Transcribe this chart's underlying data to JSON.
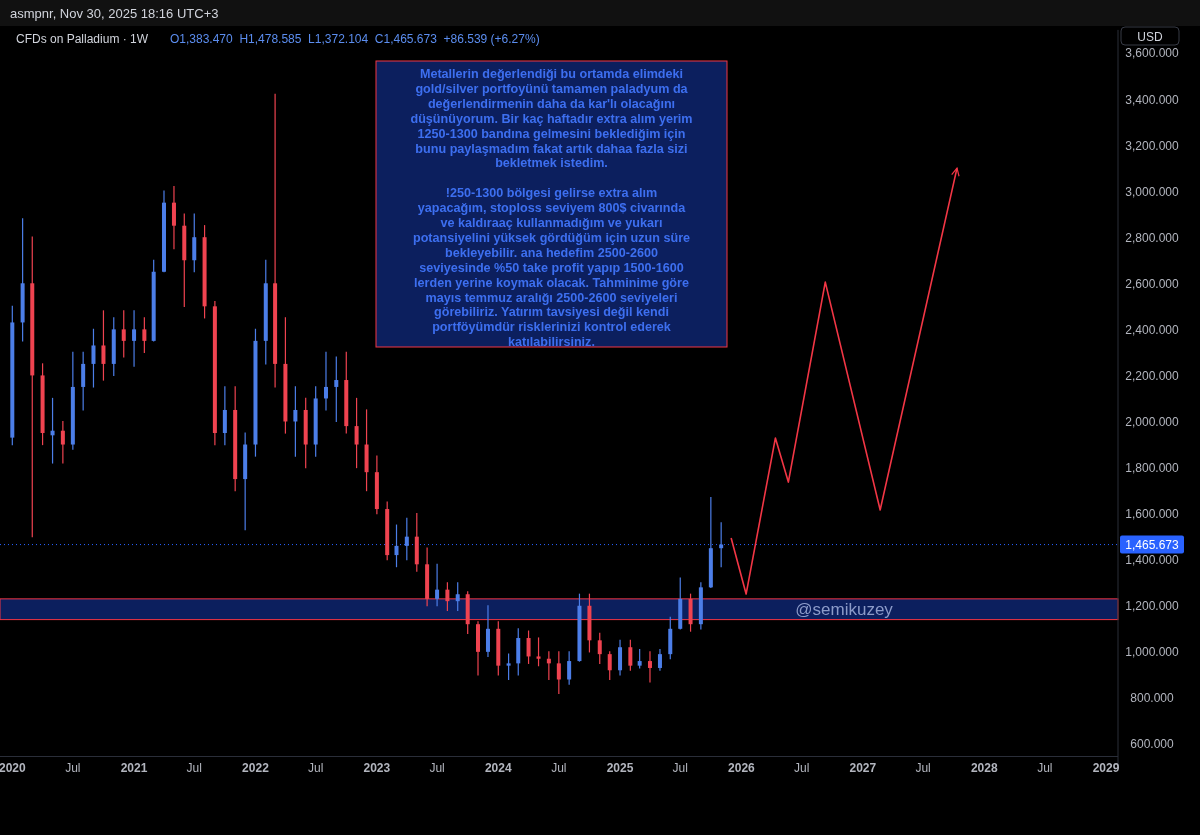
{
  "chart_data": {
    "type": "candlestick",
    "title": "CFDs on Palladium · 1W",
    "annotations": [
      "asmpnr, Nov 30, 2025 18:16 UTC+3",
      "O1,383.470  H1,478.585  L1,372.104  C1,465.673  +86.539 (+6.27%)",
      "Metallerin değerlendiği bu ortamda elimdeki\ngold/silver portfoyünü tamamen paladyum da\ndeğerlendirmenin daha da kar'lı olacağını\ndüşünüyorum. Bir kaç haftadır extra alım yerim\n1250-1300 bandına gelmesini beklediğim için\nbunu paylaşmadım fakat artık dahaa fazla sizi\nbekletmek istedim.\n\n!250-1300 bölgesi gelirse extra alım\nyapacağım, stoploss seviyem 800$ civarında\nve kaldıraaç kullanmadığım ve yukarı\npotansiyelini yüksek gördüğüm için uzun süre\nbekleyebilir. ana hedefim 2500-2600\nseviyesinde %50 take profit yapıp 1500-1600\nlerden yerine koymak olacak. Tahminime göre\nmayıs temmuz aralığı 2500-2600 seviyeleri\ngörebiliriz. Yatırım tavsiyesi değil kendi\nportföyümdür risklerinizi kontrol ederek\nkatılabilirsiniz.",
      "USD"
    ],
    "xlim": [
      "2019-11-25",
      "2029-02-06"
    ],
    "xticks": [
      {
        "value": "2020-01-01",
        "label": "2020"
      },
      {
        "value": "2020-07-01",
        "label": "Jul"
      },
      {
        "value": "2021-01-01",
        "label": "2021"
      },
      {
        "value": "2021-07-01",
        "label": "Jul"
      },
      {
        "value": "2022-01-01",
        "label": "2022"
      },
      {
        "value": "2022-07-01",
        "label": "Jul"
      },
      {
        "value": "2023-01-01",
        "label": "2023"
      },
      {
        "value": "2023-07-01",
        "label": "Jul"
      },
      {
        "value": "2024-01-01",
        "label": "2024"
      },
      {
        "value": "2024-07-01",
        "label": "Jul"
      },
      {
        "value": "2025-01-01",
        "label": "2025"
      },
      {
        "value": "2025-07-01",
        "label": "Jul"
      },
      {
        "value": "2026-01-01",
        "label": "2026"
      },
      {
        "value": "2026-07-01",
        "label": "Jul"
      },
      {
        "value": "2027-01-01",
        "label": "2027"
      },
      {
        "value": "2027-07-01",
        "label": "Jul"
      },
      {
        "value": "2028-01-01",
        "label": "2028"
      },
      {
        "value": "2028-07-01",
        "label": "Jul"
      },
      {
        "value": "2029-01-01",
        "label": "2029"
      }
    ],
    "ylim": [
      550,
      3700
    ],
    "yticks": [
      {
        "value": 600,
        "label": "600.000"
      },
      {
        "value": 800,
        "label": "800.000"
      },
      {
        "value": 1000,
        "label": "1,000.000"
      },
      {
        "value": 1200,
        "label": "1,200.000"
      },
      {
        "value": 1400,
        "label": "1,400.000"
      },
      {
        "value": 1600,
        "label": "1,600.000"
      },
      {
        "value": 1800,
        "label": "1,800.000"
      },
      {
        "value": 2000,
        "label": "2,000.000"
      },
      {
        "value": 2200,
        "label": "2,200.000"
      },
      {
        "value": 2400,
        "label": "2,400.000"
      },
      {
        "value": 2600,
        "label": "2,600.000"
      },
      {
        "value": 2800,
        "label": "2,800.000"
      },
      {
        "value": 3000,
        "label": "3,000.000"
      },
      {
        "value": 3200,
        "label": "3,200.000"
      },
      {
        "value": 3400,
        "label": "3,400.000"
      },
      {
        "value": 3600,
        "label": "3,600.000"
      }
    ],
    "grid": false,
    "ref_lines": [
      {
        "axis": "y",
        "value": 1465.673,
        "label": "1,465.673",
        "color": "#2962ff",
        "line_style": "dotted"
      }
    ],
    "bands": [
      {
        "axis": "y",
        "from": 1140,
        "to": 1230,
        "label": "@semikuzey",
        "color": "#0c1f5e"
      }
    ],
    "series": [
      {
        "type": "candlestick",
        "color": "#4c7ee8",
        "x": [
          "2020-01",
          "2020-02",
          "2020-05",
          "2020-07",
          "2020-08",
          "2020-09",
          "2020-11",
          "2021-01",
          "2021-03",
          "2021-04",
          "2021-07",
          "2021-10",
          "2021-12",
          "2022-01",
          "2022-02",
          "2022-05",
          "2022-07",
          "2022-08",
          "2022-09",
          "2023-03",
          "2023-04",
          "2023-07",
          "2023-09",
          "2023-12",
          "2024-02",
          "2024-03",
          "2024-08",
          "2024-09",
          "2025-01",
          "2025-03",
          "2025-05",
          "2025-06",
          "2025-07",
          "2025-09",
          "2025-10",
          "2025-11"
        ],
        "ohlc": [
          [
            1930,
            2500,
            1900,
            2430
          ],
          [
            2430,
            2880,
            2350,
            2600
          ],
          [
            1940,
            2100,
            1820,
            1960
          ],
          [
            1900,
            2300,
            1880,
            2150
          ],
          [
            2150,
            2300,
            2050,
            2250
          ],
          [
            2250,
            2400,
            2150,
            2330
          ],
          [
            2250,
            2450,
            2200,
            2400
          ],
          [
            2350,
            2480,
            2240,
            2400
          ],
          [
            2350,
            2700,
            2350,
            2650
          ],
          [
            2650,
            3000,
            2650,
            2950
          ],
          [
            2700,
            2900,
            2650,
            2800
          ],
          [
            1950,
            2150,
            1900,
            2050
          ],
          [
            1750,
            1950,
            1530,
            1900
          ],
          [
            1900,
            2400,
            1850,
            2350
          ],
          [
            2350,
            2700,
            2250,
            2600
          ],
          [
            2000,
            2150,
            1850,
            2050
          ],
          [
            1900,
            2150,
            1850,
            2100
          ],
          [
            2100,
            2300,
            2050,
            2150
          ],
          [
            2150,
            2280,
            2000,
            2180
          ],
          [
            1420,
            1550,
            1370,
            1460
          ],
          [
            1460,
            1580,
            1400,
            1500
          ],
          [
            1230,
            1380,
            1200,
            1270
          ],
          [
            1220,
            1300,
            1180,
            1250
          ],
          [
            1000,
            1200,
            980,
            1100
          ],
          [
            940,
            990,
            880,
            950
          ],
          [
            950,
            1100,
            900,
            1060
          ],
          [
            880,
            1000,
            860,
            960
          ],
          [
            960,
            1250,
            960,
            1200
          ],
          [
            920,
            1050,
            900,
            1020
          ],
          [
            940,
            1010,
            930,
            960
          ],
          [
            930,
            1010,
            920,
            990
          ],
          [
            990,
            1150,
            970,
            1100
          ],
          [
            1100,
            1320,
            1100,
            1230
          ],
          [
            1120,
            1300,
            1100,
            1280
          ],
          [
            1280,
            1670,
            1280,
            1450
          ],
          [
            1450,
            1560,
            1370,
            1466
          ]
        ]
      },
      {
        "type": "candlestick",
        "color": "#ef4350",
        "x": [
          "2020-03",
          "2020-04",
          "2020-06",
          "2020-10",
          "2020-12",
          "2021-02",
          "2021-05",
          "2021-06",
          "2021-08",
          "2021-09",
          "2021-11",
          "2022-03",
          "2022-04",
          "2022-06",
          "2022-10",
          "2022-11",
          "2022-12",
          "2023-01",
          "2023-02",
          "2023-05",
          "2023-06",
          "2023-08",
          "2023-10",
          "2023-11",
          "2024-01",
          "2024-04",
          "2024-05",
          "2024-06",
          "2024-07",
          "2024-10",
          "2024-11",
          "2024-12",
          "2025-02",
          "2025-04",
          "2025-08"
        ],
        "ohlc": [
          [
            2600,
            2800,
            1500,
            2200
          ],
          [
            2200,
            2250,
            1900,
            1950
          ],
          [
            1960,
            2000,
            1820,
            1900
          ],
          [
            2330,
            2480,
            2180,
            2250
          ],
          [
            2400,
            2480,
            2280,
            2350
          ],
          [
            2400,
            2450,
            2300,
            2350
          ],
          [
            2950,
            3020,
            2750,
            2850
          ],
          [
            2850,
            2900,
            2500,
            2700
          ],
          [
            2800,
            2850,
            2450,
            2500
          ],
          [
            2500,
            2520,
            1900,
            1950
          ],
          [
            2050,
            2150,
            1700,
            1750
          ],
          [
            2600,
            3420,
            2150,
            2250
          ],
          [
            2250,
            2450,
            1950,
            2000
          ],
          [
            2050,
            2100,
            1800,
            1900
          ],
          [
            2180,
            2300,
            1950,
            1980
          ],
          [
            1980,
            2100,
            1800,
            1900
          ],
          [
            1900,
            2050,
            1700,
            1780
          ],
          [
            1780,
            1850,
            1600,
            1620
          ],
          [
            1620,
            1650,
            1400,
            1420
          ],
          [
            1500,
            1600,
            1350,
            1380
          ],
          [
            1380,
            1450,
            1200,
            1230
          ],
          [
            1270,
            1300,
            1180,
            1220
          ],
          [
            1250,
            1260,
            1080,
            1120
          ],
          [
            1120,
            1130,
            900,
            1000
          ],
          [
            1100,
            1130,
            900,
            940
          ],
          [
            1060,
            1090,
            950,
            980
          ],
          [
            980,
            1060,
            940,
            970
          ],
          [
            970,
            1000,
            880,
            950
          ],
          [
            950,
            1000,
            820,
            880
          ],
          [
            1200,
            1250,
            1000,
            1050
          ],
          [
            1050,
            1080,
            950,
            990
          ],
          [
            990,
            1000,
            880,
            920
          ],
          [
            1020,
            1050,
            920,
            940
          ],
          [
            960,
            1000,
            870,
            930
          ],
          [
            1230,
            1250,
            1090,
            1120
          ]
        ]
      },
      {
        "type": "line",
        "color": "#f23645",
        "x": [
          "2025-12-01",
          "2026-01-15",
          "2026-04-13",
          "2026-05-22",
          "2026-09-10",
          "2027-02-22",
          "2027-10-11"
        ],
        "values": [
          1494,
          1251,
          1928,
          1737,
          2605,
          1616,
          3100
        ]
      }
    ]
  }
}
